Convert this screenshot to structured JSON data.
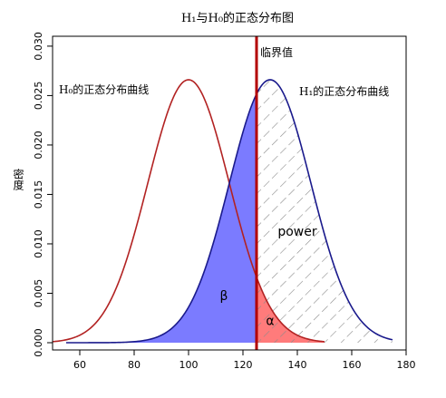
{
  "chart_data": {
    "type": "area",
    "title": "H₁与H₀的正态分布图",
    "xlabel": "",
    "ylabel": "密度",
    "xlim": [
      50,
      180
    ],
    "ylim": [
      0,
      0.031
    ],
    "xticks": [
      60,
      80,
      100,
      120,
      140,
      160,
      180
    ],
    "yticks": [
      0.0,
      0.005,
      0.01,
      0.015,
      0.02,
      0.025,
      0.03
    ],
    "ytick_labels": [
      "0.000",
      "0.005",
      "0.010",
      "0.015",
      "0.020",
      "0.025",
      "0.030"
    ],
    "series": [
      {
        "name": "H₀的正态分布曲线",
        "mean": 100,
        "sd": 15,
        "peak": 0.0266,
        "x_range": [
          50,
          150
        ],
        "color": "#b22222"
      },
      {
        "name": "H₁的正态分布曲线",
        "mean": 130,
        "sd": 15,
        "peak": 0.0266,
        "x_range": [
          55,
          175
        ],
        "color": "#1a1a8c"
      }
    ],
    "critical_value": {
      "label": "临界值",
      "x": 125,
      "color": "#b30000"
    },
    "regions": [
      {
        "label": "β",
        "fill": "#7b7bff",
        "under": "H1",
        "from": 55,
        "to": 125,
        "label_pos": [
          113,
          0.0043
        ]
      },
      {
        "label": "α",
        "fill": "#ff7b7b",
        "under": "H0",
        "from": 125,
        "to": 150,
        "label_pos": [
          130,
          0.0018
        ]
      },
      {
        "label": "power",
        "fill": "hatch",
        "under": "H1",
        "from": 125,
        "to": 175,
        "label_pos": [
          140,
          0.0108
        ]
      }
    ],
    "grid": false,
    "legend": "none"
  }
}
